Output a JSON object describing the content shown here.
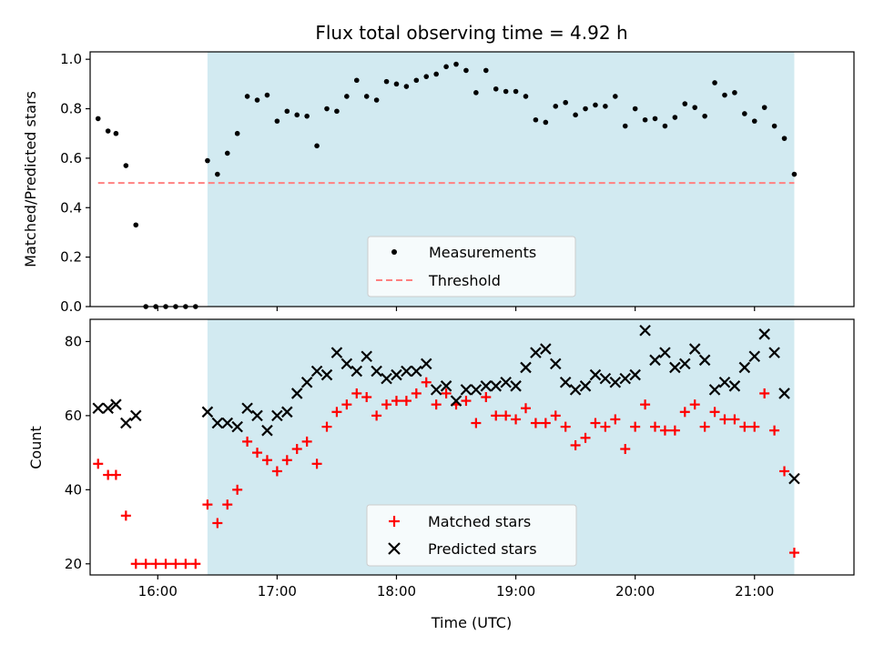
{
  "chart_data": {
    "title": "Flux total observing time = 4.92 h",
    "type": "scatter",
    "x_axis": {
      "label": "Time (UTC)",
      "range": [
        "15:26",
        "21:50"
      ],
      "tick_labels": [
        "16:00",
        "17:00",
        "18:00",
        "19:00",
        "20:00",
        "21:00"
      ],
      "tick_values": [
        "16:00",
        "17:00",
        "18:00",
        "19:00",
        "20:00",
        "21:00"
      ]
    },
    "highlight_span": {
      "start": "16:25",
      "end": "21:20",
      "color": "#add8e6"
    },
    "panels": [
      {
        "ylabel": "Matched/Predicted stars",
        "ylim": [
          0,
          1.03
        ],
        "yticks": [
          0.0,
          0.2,
          0.4,
          0.6,
          0.8,
          1.0
        ],
        "ytick_labels": [
          "0.0",
          "0.2",
          "0.4",
          "0.6",
          "0.8",
          "1.0"
        ],
        "legend": {
          "position": "lower-center",
          "entries": [
            "Measurements",
            "Threshold"
          ]
        },
        "threshold": {
          "name": "Threshold",
          "value": 0.5,
          "x_start": "15:30",
          "x_end": "21:20",
          "color": "#ff8080",
          "style": "dashed"
        },
        "series": [
          {
            "name": "Measurements",
            "marker": "dot",
            "color": "#000000",
            "points": [
              [
                "15:30",
                0.76
              ],
              [
                "15:35",
                0.71
              ],
              [
                "15:39",
                0.7
              ],
              [
                "15:44",
                0.57
              ],
              [
                "15:49",
                0.33
              ],
              [
                "15:54",
                0.0
              ],
              [
                "15:59",
                0.0
              ],
              [
                "16:04",
                0.0
              ],
              [
                "16:09",
                0.0
              ],
              [
                "16:14",
                0.0
              ],
              [
                "16:19",
                0.0
              ],
              [
                "16:25",
                0.59
              ],
              [
                "16:30",
                0.535
              ],
              [
                "16:35",
                0.62
              ],
              [
                "16:40",
                0.7
              ],
              [
                "16:45",
                0.85
              ],
              [
                "16:50",
                0.835
              ],
              [
                "16:55",
                0.855
              ],
              [
                "17:00",
                0.75
              ],
              [
                "17:05",
                0.79
              ],
              [
                "17:10",
                0.775
              ],
              [
                "17:15",
                0.77
              ],
              [
                "17:20",
                0.65
              ],
              [
                "17:25",
                0.8
              ],
              [
                "17:30",
                0.79
              ],
              [
                "17:35",
                0.85
              ],
              [
                "17:40",
                0.915
              ],
              [
                "17:45",
                0.85
              ],
              [
                "17:50",
                0.835
              ],
              [
                "17:55",
                0.91
              ],
              [
                "18:00",
                0.9
              ],
              [
                "18:05",
                0.89
              ],
              [
                "18:10",
                0.915
              ],
              [
                "18:15",
                0.93
              ],
              [
                "18:20",
                0.94
              ],
              [
                "18:25",
                0.97
              ],
              [
                "18:30",
                0.98
              ],
              [
                "18:35",
                0.955
              ],
              [
                "18:40",
                0.865
              ],
              [
                "18:45",
                0.955
              ],
              [
                "18:50",
                0.88
              ],
              [
                "18:55",
                0.87
              ],
              [
                "19:00",
                0.87
              ],
              [
                "19:05",
                0.85
              ],
              [
                "19:10",
                0.755
              ],
              [
                "19:15",
                0.745
              ],
              [
                "19:20",
                0.81
              ],
              [
                "19:25",
                0.825
              ],
              [
                "19:30",
                0.775
              ],
              [
                "19:35",
                0.8
              ],
              [
                "19:40",
                0.815
              ],
              [
                "19:45",
                0.81
              ],
              [
                "19:50",
                0.85
              ],
              [
                "19:55",
                0.73
              ],
              [
                "20:00",
                0.8
              ],
              [
                "20:05",
                0.755
              ],
              [
                "20:10",
                0.76
              ],
              [
                "20:15",
                0.73
              ],
              [
                "20:20",
                0.765
              ],
              [
                "20:25",
                0.82
              ],
              [
                "20:30",
                0.805
              ],
              [
                "20:35",
                0.77
              ],
              [
                "20:40",
                0.905
              ],
              [
                "20:45",
                0.855
              ],
              [
                "20:50",
                0.865
              ],
              [
                "20:55",
                0.78
              ],
              [
                "21:00",
                0.75
              ],
              [
                "21:05",
                0.805
              ],
              [
                "21:10",
                0.73
              ],
              [
                "21:15",
                0.68
              ],
              [
                "21:20",
                0.535
              ]
            ]
          }
        ]
      },
      {
        "ylabel": "Count",
        "ylim": [
          17,
          86
        ],
        "yticks": [
          20,
          40,
          60,
          80
        ],
        "ytick_labels": [
          "20",
          "40",
          "60",
          "80"
        ],
        "legend": {
          "position": "lower-center",
          "entries": [
            "Matched stars",
            "Predicted stars"
          ]
        },
        "series": [
          {
            "name": "Matched stars",
            "marker": "plus",
            "color": "#ff0000",
            "points": [
              [
                "15:30",
                47
              ],
              [
                "15:35",
                44
              ],
              [
                "15:39",
                44
              ],
              [
                "15:44",
                33
              ],
              [
                "15:49",
                20
              ],
              [
                "15:54",
                20
              ],
              [
                "15:59",
                20
              ],
              [
                "16:04",
                20
              ],
              [
                "16:09",
                20
              ],
              [
                "16:14",
                20
              ],
              [
                "16:19",
                20
              ],
              [
                "16:25",
                36
              ],
              [
                "16:30",
                31
              ],
              [
                "16:35",
                36
              ],
              [
                "16:40",
                40
              ],
              [
                "16:45",
                53
              ],
              [
                "16:50",
                50
              ],
              [
                "16:55",
                48
              ],
              [
                "17:00",
                45
              ],
              [
                "17:05",
                48
              ],
              [
                "17:10",
                51
              ],
              [
                "17:15",
                53
              ],
              [
                "17:20",
                47
              ],
              [
                "17:25",
                57
              ],
              [
                "17:30",
                61
              ],
              [
                "17:35",
                63
              ],
              [
                "17:40",
                66
              ],
              [
                "17:45",
                65
              ],
              [
                "17:50",
                60
              ],
              [
                "17:55",
                63
              ],
              [
                "18:00",
                64
              ],
              [
                "18:05",
                64
              ],
              [
                "18:10",
                66
              ],
              [
                "18:15",
                69
              ],
              [
                "18:20",
                63
              ],
              [
                "18:25",
                66
              ],
              [
                "18:30",
                63
              ],
              [
                "18:35",
                64
              ],
              [
                "18:40",
                58
              ],
              [
                "18:45",
                65
              ],
              [
                "18:50",
                60
              ],
              [
                "18:55",
                60
              ],
              [
                "19:00",
                59
              ],
              [
                "19:05",
                62
              ],
              [
                "19:10",
                58
              ],
              [
                "19:15",
                58
              ],
              [
                "19:20",
                60
              ],
              [
                "19:25",
                57
              ],
              [
                "19:30",
                52
              ],
              [
                "19:35",
                54
              ],
              [
                "19:40",
                58
              ],
              [
                "19:45",
                57
              ],
              [
                "19:50",
                59
              ],
              [
                "19:55",
                51
              ],
              [
                "20:00",
                57
              ],
              [
                "20:05",
                63
              ],
              [
                "20:10",
                57
              ],
              [
                "20:15",
                56
              ],
              [
                "20:20",
                56
              ],
              [
                "20:25",
                61
              ],
              [
                "20:30",
                63
              ],
              [
                "20:35",
                57
              ],
              [
                "20:40",
                61
              ],
              [
                "20:45",
                59
              ],
              [
                "20:50",
                59
              ],
              [
                "20:55",
                57
              ],
              [
                "21:00",
                57
              ],
              [
                "21:05",
                66
              ],
              [
                "21:10",
                56
              ],
              [
                "21:15",
                45
              ],
              [
                "21:20",
                23
              ]
            ]
          },
          {
            "name": "Predicted stars",
            "marker": "x",
            "color": "#000000",
            "points": [
              [
                "15:30",
                62
              ],
              [
                "15:35",
                62
              ],
              [
                "15:39",
                63
              ],
              [
                "15:44",
                58
              ],
              [
                "15:49",
                60
              ],
              [
                "16:25",
                61
              ],
              [
                "16:30",
                58
              ],
              [
                "16:35",
                58
              ],
              [
                "16:40",
                57
              ],
              [
                "16:45",
                62
              ],
              [
                "16:50",
                60
              ],
              [
                "16:55",
                56
              ],
              [
                "17:00",
                60
              ],
              [
                "17:05",
                61
              ],
              [
                "17:10",
                66
              ],
              [
                "17:15",
                69
              ],
              [
                "17:20",
                72
              ],
              [
                "17:25",
                71
              ],
              [
                "17:30",
                77
              ],
              [
                "17:35",
                74
              ],
              [
                "17:40",
                72
              ],
              [
                "17:45",
                76
              ],
              [
                "17:50",
                72
              ],
              [
                "17:55",
                70
              ],
              [
                "18:00",
                71
              ],
              [
                "18:05",
                72
              ],
              [
                "18:10",
                72
              ],
              [
                "18:15",
                74
              ],
              [
                "18:20",
                67
              ],
              [
                "18:25",
                68
              ],
              [
                "18:30",
                64
              ],
              [
                "18:35",
                67
              ],
              [
                "18:40",
                67
              ],
              [
                "18:45",
                68
              ],
              [
                "18:50",
                68
              ],
              [
                "18:55",
                69
              ],
              [
                "19:00",
                68
              ],
              [
                "19:05",
                73
              ],
              [
                "19:10",
                77
              ],
              [
                "19:15",
                78
              ],
              [
                "19:20",
                74
              ],
              [
                "19:25",
                69
              ],
              [
                "19:30",
                67
              ],
              [
                "19:35",
                68
              ],
              [
                "19:40",
                71
              ],
              [
                "19:45",
                70
              ],
              [
                "19:50",
                69
              ],
              [
                "19:55",
                70
              ],
              [
                "20:00",
                71
              ],
              [
                "20:05",
                83
              ],
              [
                "20:10",
                75
              ],
              [
                "20:15",
                77
              ],
              [
                "20:20",
                73
              ],
              [
                "20:25",
                74
              ],
              [
                "20:30",
                78
              ],
              [
                "20:35",
                75
              ],
              [
                "20:40",
                67
              ],
              [
                "20:45",
                69
              ],
              [
                "20:50",
                68
              ],
              [
                "20:55",
                73
              ],
              [
                "21:00",
                76
              ],
              [
                "21:05",
                82
              ],
              [
                "21:10",
                77
              ],
              [
                "21:15",
                66
              ],
              [
                "21:20",
                43
              ]
            ]
          }
        ]
      }
    ]
  }
}
